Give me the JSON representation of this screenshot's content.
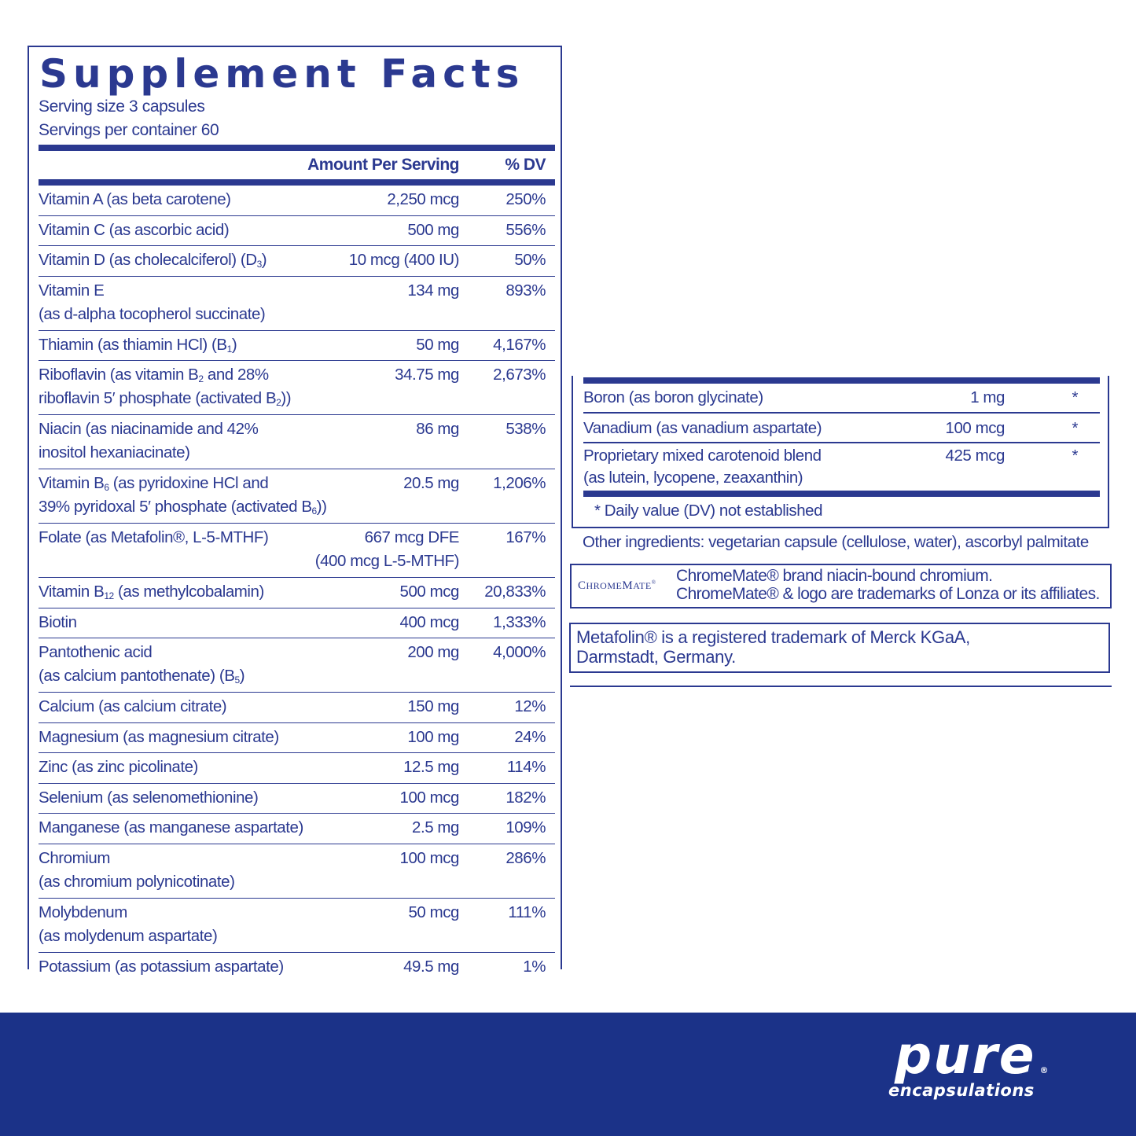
{
  "title": "Supplement Facts",
  "serving_size": "Serving size  3 capsules",
  "servings_per_container": "Servings per container  60",
  "header": {
    "amount": "Amount Per Serving",
    "dv": "% DV"
  },
  "rows": [
    {
      "name": "Vitamin A (as beta carotene)",
      "amount": "2,250 mcg",
      "dv": "250%"
    },
    {
      "name": "Vitamin C (as ascorbic acid)",
      "amount": "500 mg",
      "dv": "556%"
    },
    {
      "name": "Vitamin D (as cholecalciferol) (D",
      "sub": "3",
      "name_end": ")",
      "amount": "10 mcg (400 IU)",
      "dv": "50%"
    },
    {
      "name": "Vitamin E",
      "name2": "(as d-alpha tocopherol succinate)",
      "amount": "134 mg",
      "dv": "893%"
    },
    {
      "name": "Thiamin (as thiamin HCl) (B",
      "sub": "1",
      "name_end": ")",
      "amount": "50 mg",
      "dv": "4,167%"
    },
    {
      "name": "Riboflavin (as vitamin B",
      "sub": "2",
      "name_end": " and 28%",
      "name2": "riboflavin 5′ phosphate (activated B",
      "sub2": "2",
      "name2_end": "))",
      "amount": "34.75 mg",
      "dv": "2,673%"
    },
    {
      "name": "Niacin (as niacinamide and 42%",
      "name2": "inositol hexaniacinate)",
      "amount": "86 mg",
      "dv": "538%"
    },
    {
      "name": "Vitamin B",
      "sub": "6",
      "name_end": " (as pyridoxine HCl and",
      "name2": "39% pyridoxal 5′ phosphate (activated B",
      "sub2": "6",
      "name2_end": "))",
      "amount": "20.5 mg",
      "dv": "1,206%"
    },
    {
      "name": "Folate (as Metafolin®, L-5-MTHF)",
      "amount": "667 mcg DFE",
      "amount2": "(400 mcg L-5-MTHF)",
      "dv": "167%"
    },
    {
      "name": "Vitamin B",
      "sub": "12",
      "name_end": " (as methylcobalamin)",
      "amount": "500 mcg",
      "dv": "20,833%"
    },
    {
      "name": "Biotin",
      "amount": "400 mcg",
      "dv": "1,333%"
    },
    {
      "name": "Pantothenic acid",
      "name2": "(as calcium pantothenate) (B",
      "sub2": "5",
      "name2_end": ")",
      "amount": "200 mg",
      "dv": "4,000%"
    },
    {
      "name": "Calcium (as calcium citrate)",
      "amount": "150 mg",
      "dv": "12%"
    },
    {
      "name": "Magnesium (as magnesium citrate)",
      "amount": "100 mg",
      "dv": "24%"
    },
    {
      "name": "Zinc (as zinc picolinate)",
      "amount": "12.5 mg",
      "dv": "114%"
    },
    {
      "name": "Selenium (as selenomethionine)",
      "amount": "100 mcg",
      "dv": "182%"
    },
    {
      "name": "Manganese (as manganese aspartate)",
      "amount": "2.5 mg",
      "dv": "109%"
    },
    {
      "name": "Chromium",
      "name2": "(as chromium polynicotinate)",
      "amount": "100 mcg",
      "dv": "286%"
    },
    {
      "name": "Molybdenum",
      "name2": "(as molydenum aspartate)",
      "amount": "50 mcg",
      "dv": "111%"
    },
    {
      "name": "Potassium (as potassium aspartate)",
      "amount": "49.5 mg",
      "dv": "1%"
    }
  ],
  "right_rows": [
    {
      "name": "Boron (as boron glycinate)",
      "amount": "1 mg",
      "dv": "*"
    },
    {
      "name": "Vanadium (as vanadium aspartate)",
      "amount": "100 mcg",
      "dv": "*"
    },
    {
      "name": "Proprietary mixed carotenoid blend",
      "name2": "(as lutein, lycopene, zeaxanthin)",
      "amount": "425 mcg",
      "dv": "*"
    }
  ],
  "footnote": "*  Daily value (DV) not established",
  "other_ingredients": "Other ingredients: vegetarian capsule (cellulose, water), ascorbyl palmitate",
  "chromemate": {
    "logo": "ChromeMate®",
    "line1": "ChromeMate® brand niacin-bound chromium.",
    "line2": "ChromeMate® & logo are trademarks of Lonza or its affiliates."
  },
  "metafolin": {
    "line1": "Metafolin® is a registered trademark of Merck KGaA,",
    "line2": "Darmstadt, Germany."
  },
  "brand": {
    "line1": "pure",
    "line2": "encapsulations",
    "mark": "®"
  },
  "colors": {
    "text": "#2b3990",
    "footer": "#1b3288"
  }
}
